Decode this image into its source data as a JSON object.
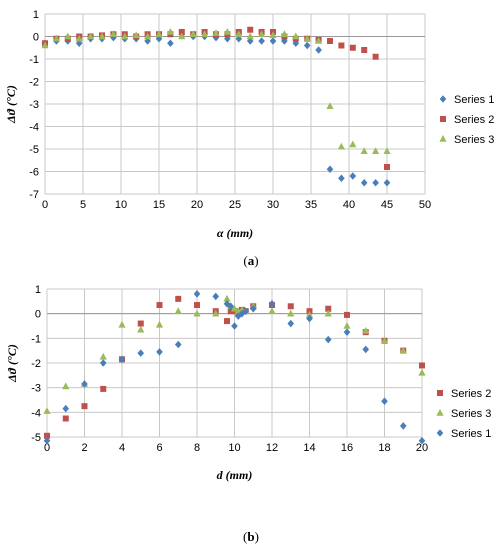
{
  "chart_data": [
    {
      "type": "scatter",
      "panel_label": "a",
      "xlabel": "α (mm)",
      "ylabel": "Δϑ (°C)",
      "xlim": [
        0,
        50
      ],
      "ylim": [
        -7,
        1
      ],
      "xticks": [
        0,
        5,
        10,
        15,
        20,
        25,
        30,
        35,
        40,
        45,
        50
      ],
      "yticks": [
        -7,
        -6,
        -5,
        -4,
        -3,
        -2,
        -1,
        0,
        1
      ],
      "grid": "both",
      "legend_position": "right",
      "series": [
        {
          "name": "Series 1",
          "color": "#4a7ebb",
          "marker": "diamond",
          "points": [
            [
              0,
              -0.3
            ],
            [
              1.5,
              -0.2
            ],
            [
              3,
              -0.2
            ],
            [
              4.5,
              -0.3
            ],
            [
              6,
              -0.1
            ],
            [
              7.5,
              -0.1
            ],
            [
              9,
              -0.05
            ],
            [
              10.5,
              -0.1
            ],
            [
              12,
              -0.1
            ],
            [
              13.5,
              -0.2
            ],
            [
              15,
              -0.1
            ],
            [
              16.5,
              -0.3
            ],
            [
              18,
              0.1
            ],
            [
              19.5,
              0
            ],
            [
              21,
              0
            ],
            [
              22.5,
              -0.05
            ],
            [
              24,
              -0.1
            ],
            [
              25.5,
              -0.1
            ],
            [
              27,
              -0.2
            ],
            [
              28.5,
              -0.2
            ],
            [
              30,
              -0.2
            ],
            [
              31.5,
              -0.2
            ],
            [
              33,
              -0.3
            ],
            [
              34.5,
              -0.4
            ],
            [
              36,
              -0.6
            ],
            [
              37.5,
              -5.9
            ],
            [
              39,
              -6.3
            ],
            [
              40.5,
              -6.2
            ],
            [
              42,
              -6.5
            ],
            [
              43.5,
              -6.5
            ],
            [
              45,
              -6.5
            ]
          ]
        },
        {
          "name": "Series 2",
          "color": "#c0504d",
          "marker": "square",
          "points": [
            [
              0,
              -0.3
            ],
            [
              1.5,
              -0.1
            ],
            [
              3,
              -0.1
            ],
            [
              4.5,
              0
            ],
            [
              6,
              0
            ],
            [
              7.5,
              0.05
            ],
            [
              9,
              0.1
            ],
            [
              10.5,
              0.1
            ],
            [
              12,
              0
            ],
            [
              13.5,
              0.1
            ],
            [
              15,
              0.1
            ],
            [
              16.5,
              0.1
            ],
            [
              18,
              0.2
            ],
            [
              19.5,
              0.1
            ],
            [
              21,
              0.2
            ],
            [
              22.5,
              0.1
            ],
            [
              24,
              0.1
            ],
            [
              25.5,
              0.2
            ],
            [
              27,
              0.3
            ],
            [
              28.5,
              0.2
            ],
            [
              30,
              0.2
            ],
            [
              31.5,
              0
            ],
            [
              33,
              -0.1
            ],
            [
              34.5,
              -0.1
            ],
            [
              36,
              -0.15
            ],
            [
              37.5,
              -0.2
            ],
            [
              39,
              -0.4
            ],
            [
              40.5,
              -0.5
            ],
            [
              42,
              -0.6
            ],
            [
              43.5,
              -0.9
            ],
            [
              45,
              -5.8
            ]
          ]
        },
        {
          "name": "Series 3",
          "color": "#9bbb59",
          "marker": "triangle",
          "points": [
            [
              0,
              -0.4
            ],
            [
              1.5,
              -0.1
            ],
            [
              3,
              0
            ],
            [
              4.5,
              -0.1
            ],
            [
              6,
              0
            ],
            [
              7.5,
              0
            ],
            [
              9,
              0.1
            ],
            [
              10.5,
              0
            ],
            [
              12,
              0.05
            ],
            [
              13.5,
              0
            ],
            [
              15,
              0.1
            ],
            [
              16.5,
              0.2
            ],
            [
              18,
              0
            ],
            [
              19.5,
              0.1
            ],
            [
              21,
              0.1
            ],
            [
              22.5,
              0.15
            ],
            [
              24,
              0.2
            ],
            [
              25.5,
              0.1
            ],
            [
              27,
              0
            ],
            [
              28.5,
              0.1
            ],
            [
              30,
              0.05
            ],
            [
              31.5,
              0.1
            ],
            [
              33,
              0
            ],
            [
              34.5,
              -0.1
            ],
            [
              36,
              -0.2
            ],
            [
              37.5,
              -3.1
            ],
            [
              39,
              -4.9
            ],
            [
              40.5,
              -4.8
            ],
            [
              42,
              -5.1
            ],
            [
              43.5,
              -5.1
            ],
            [
              45,
              -5.1
            ]
          ]
        }
      ]
    },
    {
      "type": "scatter",
      "panel_label": "b",
      "xlabel": "d (mm)",
      "ylabel": "Δϑ (°C)",
      "xlim": [
        0,
        20
      ],
      "ylim": [
        -5,
        1
      ],
      "xticks": [
        0,
        2,
        4,
        6,
        8,
        10,
        12,
        14,
        16,
        18,
        20
      ],
      "yticks": [
        -5,
        -4,
        -3,
        -2,
        -1,
        0,
        1
      ],
      "grid": "both",
      "legend_position": "right",
      "series": [
        {
          "name": "Series 2",
          "color": "#c0504d",
          "marker": "square",
          "points": [
            [
              0,
              -4.95
            ],
            [
              1,
              -4.25
            ],
            [
              2,
              -3.75
            ],
            [
              3,
              -3.05
            ],
            [
              4,
              -1.85
            ],
            [
              5,
              -0.4
            ],
            [
              6,
              0.35
            ],
            [
              7,
              0.6
            ],
            [
              8,
              0.35
            ],
            [
              9,
              0.1
            ],
            [
              9.6,
              -0.3
            ],
            [
              9.8,
              0.1
            ],
            [
              10,
              0.1
            ],
            [
              10.2,
              0
            ],
            [
              10.4,
              0.15
            ],
            [
              10.6,
              0.1
            ],
            [
              11,
              0.3
            ],
            [
              12,
              0.35
            ],
            [
              13,
              0.3
            ],
            [
              14,
              0.1
            ],
            [
              15,
              0.2
            ],
            [
              16,
              -0.05
            ],
            [
              17,
              -0.75
            ],
            [
              18,
              -1.1
            ],
            [
              19,
              -1.5
            ],
            [
              20,
              -2.1
            ]
          ]
        },
        {
          "name": "Series 3",
          "color": "#9bbb59",
          "marker": "triangle",
          "points": [
            [
              0,
              -3.95
            ],
            [
              1,
              -2.95
            ],
            [
              2,
              -2.85
            ],
            [
              3,
              -1.75
            ],
            [
              4,
              -0.45
            ],
            [
              5,
              -0.65
            ],
            [
              6,
              -0.45
            ],
            [
              7,
              0.1
            ],
            [
              8,
              0
            ],
            [
              9,
              0
            ],
            [
              9.6,
              0.6
            ],
            [
              9.8,
              0.3
            ],
            [
              10,
              0.2
            ],
            [
              10.2,
              0.1
            ],
            [
              10.4,
              0.15
            ],
            [
              10.6,
              0.1
            ],
            [
              11,
              0.3
            ],
            [
              12,
              0.1
            ],
            [
              13,
              0
            ],
            [
              14,
              -0.05
            ],
            [
              15,
              0
            ],
            [
              16,
              -0.5
            ],
            [
              17,
              -0.7
            ],
            [
              18,
              -1.1
            ],
            [
              19,
              -1.5
            ],
            [
              20,
              -2.4
            ]
          ]
        },
        {
          "name": "Series 1",
          "color": "#4a7ebb",
          "marker": "diamond",
          "points": [
            [
              0,
              -5.15
            ],
            [
              1,
              -3.85
            ],
            [
              2,
              -2.85
            ],
            [
              3,
              -2
            ],
            [
              4,
              -1.85
            ],
            [
              5,
              -1.6
            ],
            [
              6,
              -1.55
            ],
            [
              7,
              -1.25
            ],
            [
              8,
              0.8
            ],
            [
              9,
              0.7
            ],
            [
              9.6,
              0.4
            ],
            [
              9.8,
              0.3
            ],
            [
              10,
              -0.5
            ],
            [
              10.2,
              -0.1
            ],
            [
              10.4,
              0
            ],
            [
              10.6,
              0.1
            ],
            [
              11,
              0.2
            ],
            [
              12,
              0.4
            ],
            [
              13,
              -0.4
            ],
            [
              14,
              -0.2
            ],
            [
              15,
              -1.05
            ],
            [
              16,
              -0.75
            ],
            [
              17,
              -1.45
            ],
            [
              18,
              -3.55
            ],
            [
              19,
              -4.55
            ],
            [
              20,
              -5.15
            ]
          ]
        }
      ]
    }
  ]
}
